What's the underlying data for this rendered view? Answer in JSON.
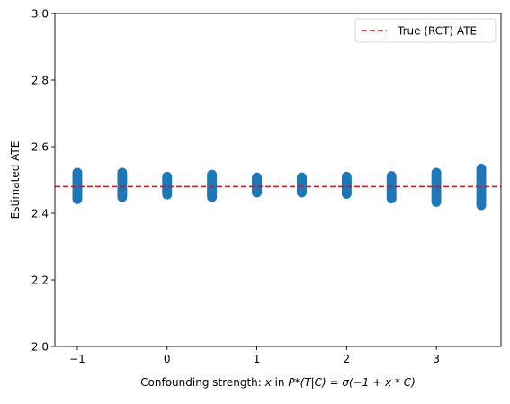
{
  "chart_data": {
    "type": "scatter",
    "xlabel_prefix": "Confounding strength: ",
    "xlabel_x": "x",
    "xlabel_in": " in ",
    "xlabel_formula": "P*(T|C) = σ(−1 + x * C)",
    "ylabel": "Estimated ATE",
    "xlim": [
      -1.25,
      3.72
    ],
    "ylim": [
      2.0,
      3.0
    ],
    "xticks": [
      -1,
      0,
      1,
      2,
      3
    ],
    "xtick_labels": [
      "−1",
      "0",
      "1",
      "2",
      "3"
    ],
    "yticks": [
      2.0,
      2.2,
      2.4,
      2.6,
      2.8,
      3.0
    ],
    "ytick_labels": [
      "2.0",
      "2.2",
      "2.4",
      "2.6",
      "2.8",
      "3.0"
    ],
    "grid": false,
    "legend": {
      "placement": "top-right",
      "entries": [
        "True (RCT) ATE"
      ]
    },
    "reference_line": {
      "name": "True (RCT) ATE",
      "y": 2.48,
      "color": "#ff0000",
      "style": "dashed"
    },
    "series": [
      {
        "marker_color": "#1f77b4",
        "groups": [
          {
            "x": -1.0,
            "ymin": 2.442,
            "ymax": 2.522
          },
          {
            "x": -0.5,
            "ymin": 2.448,
            "ymax": 2.522
          },
          {
            "x": 0.0,
            "ymin": 2.456,
            "ymax": 2.51
          },
          {
            "x": 0.5,
            "ymin": 2.448,
            "ymax": 2.516
          },
          {
            "x": 1.0,
            "ymin": 2.462,
            "ymax": 2.508
          },
          {
            "x": 1.5,
            "ymin": 2.462,
            "ymax": 2.508
          },
          {
            "x": 2.0,
            "ymin": 2.458,
            "ymax": 2.51
          },
          {
            "x": 2.5,
            "ymin": 2.444,
            "ymax": 2.512
          },
          {
            "x": 3.0,
            "ymin": 2.434,
            "ymax": 2.522
          },
          {
            "x": 3.5,
            "ymin": 2.424,
            "ymax": 2.534
          }
        ]
      }
    ]
  }
}
